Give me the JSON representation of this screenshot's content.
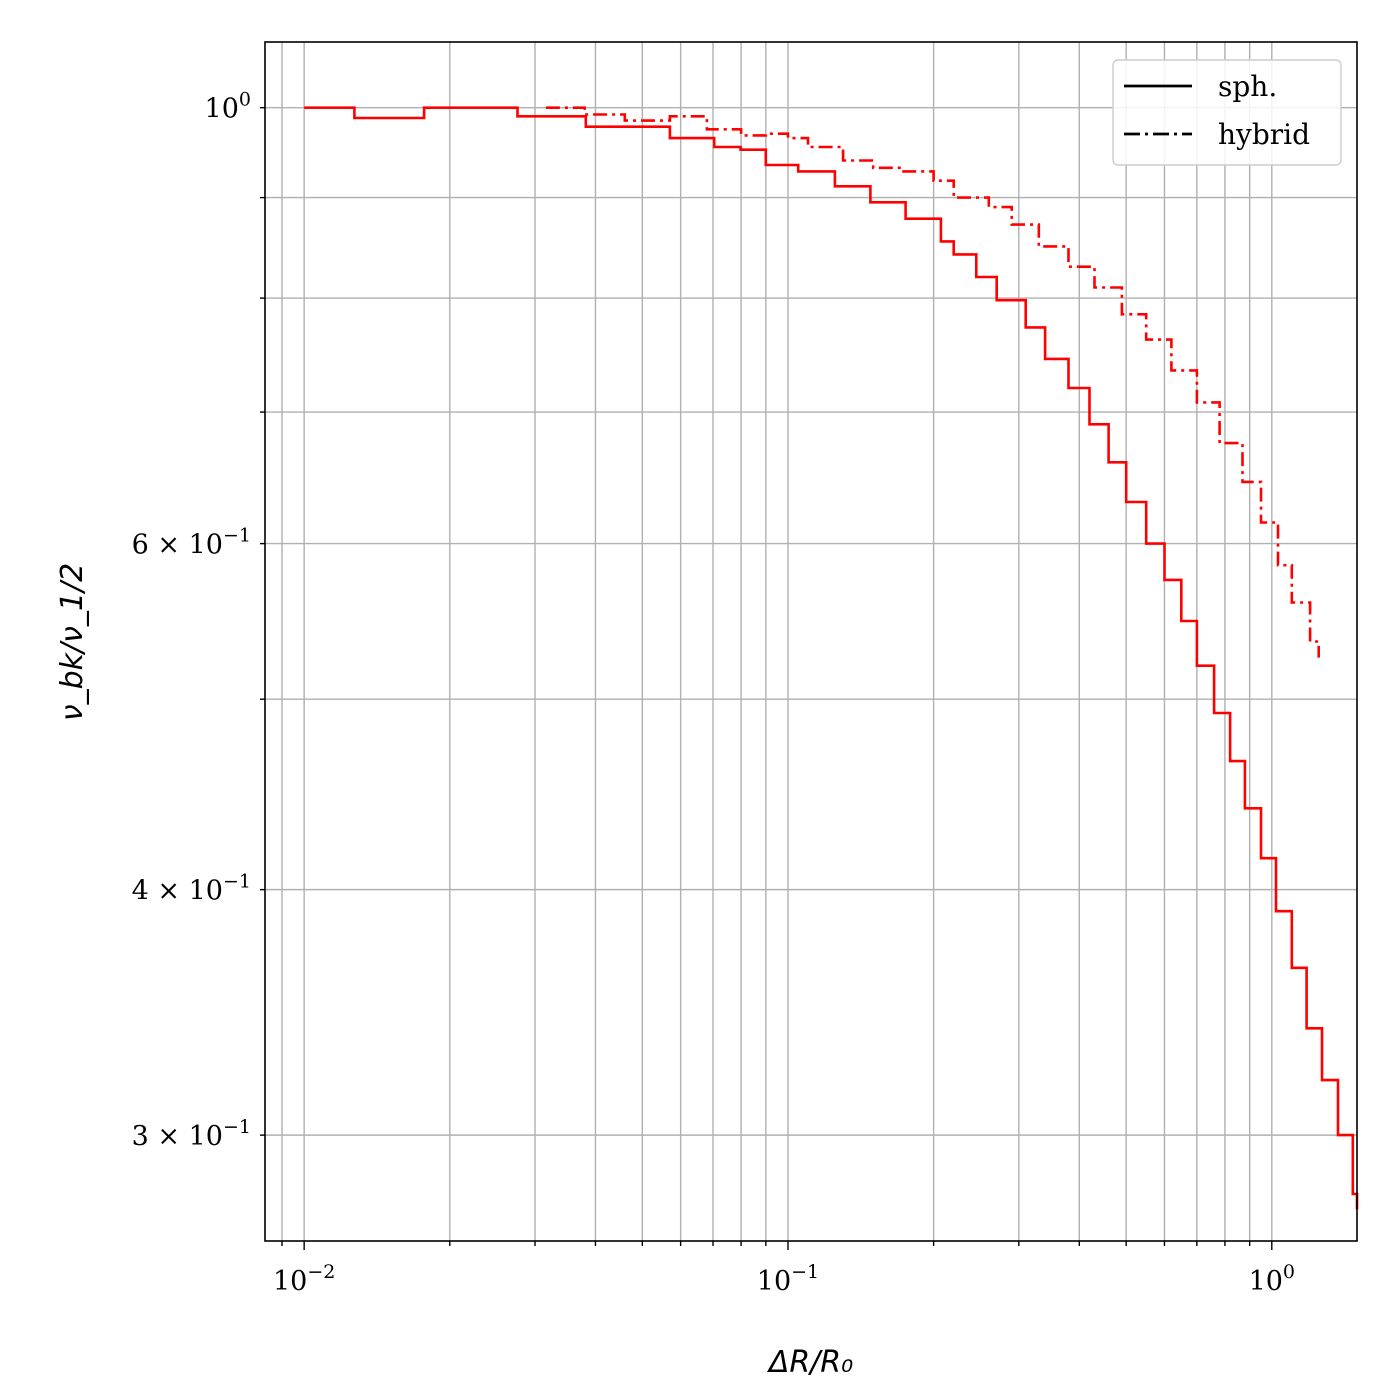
{
  "chart_data": {
    "type": "line",
    "xscale": "log",
    "yscale": "log",
    "xlim": [
      0.0083,
      1.5
    ],
    "ylim": [
      0.265,
      1.08
    ],
    "grid": true,
    "grid_minor": true,
    "legend_position": "top-right",
    "xlabel": "ΔR/R₀",
    "ylabel": "ν_bk/ν_1/2",
    "x_ticks": [
      {
        "value": 0.01,
        "base": "10",
        "exp": "−2"
      },
      {
        "value": 0.1,
        "base": "10",
        "exp": "−1"
      },
      {
        "value": 1.0,
        "base": "10",
        "exp": "0"
      }
    ],
    "y_ticks": [
      {
        "value": 1.0,
        "mantissa": "",
        "base": "10",
        "exp": "0"
      },
      {
        "value": 0.6,
        "mantissa": "6 × ",
        "base": "10",
        "exp": "−1"
      },
      {
        "value": 0.4,
        "mantissa": "4 × ",
        "base": "10",
        "exp": "−1"
      },
      {
        "value": 0.3,
        "mantissa": "3 × ",
        "base": "10",
        "exp": "−1"
      }
    ],
    "series": [
      {
        "name": "sph.",
        "style": "solid",
        "color": "#ff0000",
        "x": [
          0.01,
          0.0127,
          0.0177,
          0.0276,
          0.0382,
          0.057,
          0.0704,
          0.0798,
          0.09,
          0.105,
          0.125,
          0.148,
          0.175,
          0.207,
          0.22,
          0.245,
          0.27,
          0.31,
          0.34,
          0.38,
          0.42,
          0.46,
          0.5,
          0.55,
          0.6,
          0.65,
          0.7,
          0.76,
          0.82,
          0.88,
          0.95,
          1.02,
          1.1,
          1.18,
          1.27,
          1.37,
          1.47,
          1.5
        ],
        "y": [
          1.0,
          0.988,
          1.0,
          0.99,
          0.978,
          0.965,
          0.955,
          0.952,
          0.935,
          0.928,
          0.912,
          0.895,
          0.878,
          0.855,
          0.842,
          0.82,
          0.798,
          0.773,
          0.745,
          0.72,
          0.69,
          0.66,
          0.63,
          0.6,
          0.575,
          0.548,
          0.52,
          0.492,
          0.465,
          0.44,
          0.415,
          0.39,
          0.365,
          0.34,
          0.32,
          0.3,
          0.28,
          0.275
        ]
      },
      {
        "name": "hybrid",
        "style": "dashdot",
        "color": "#ff0000",
        "x": [
          0.0316,
          0.038,
          0.046,
          0.057,
          0.068,
          0.08,
          0.09,
          0.1,
          0.11,
          0.13,
          0.15,
          0.17,
          0.2,
          0.22,
          0.26,
          0.29,
          0.33,
          0.38,
          0.43,
          0.49,
          0.55,
          0.62,
          0.7,
          0.78,
          0.87,
          0.95,
          1.03,
          1.1,
          1.2,
          1.25
        ],
        "y": [
          1.0,
          0.992,
          0.985,
          0.99,
          0.975,
          0.968,
          0.97,
          0.965,
          0.955,
          0.94,
          0.932,
          0.928,
          0.918,
          0.9,
          0.89,
          0.872,
          0.85,
          0.83,
          0.81,
          0.785,
          0.762,
          0.735,
          0.708,
          0.675,
          0.645,
          0.615,
          0.585,
          0.56,
          0.535,
          0.525
        ]
      }
    ]
  }
}
